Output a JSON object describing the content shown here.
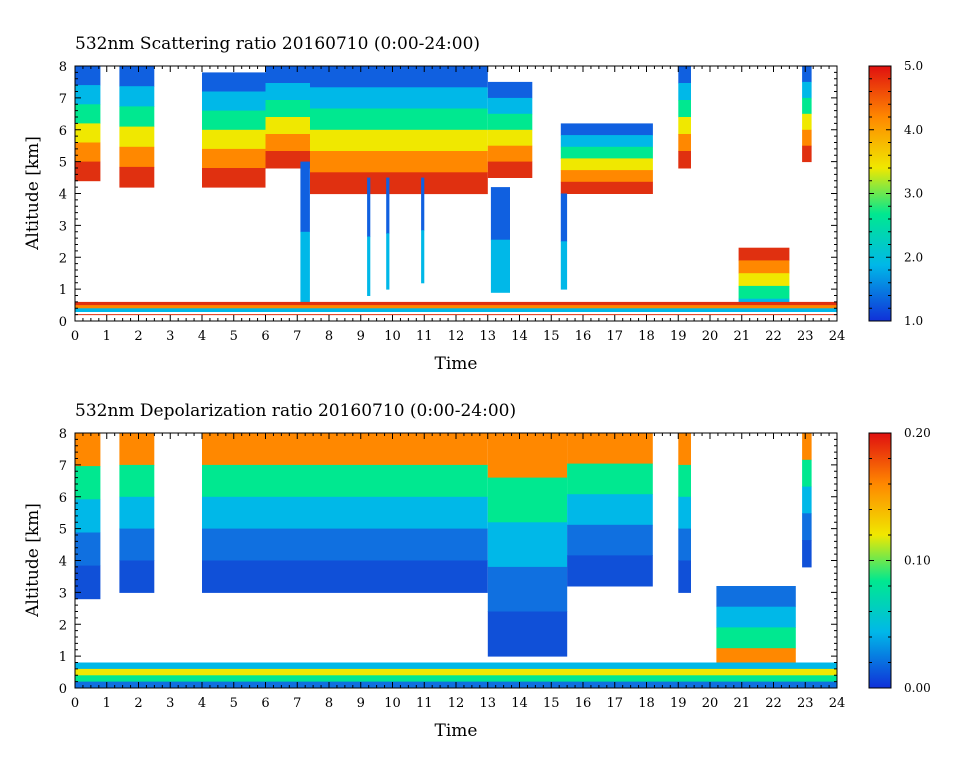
{
  "chart_data": [
    {
      "type": "heatmap",
      "title": "532nm Scattering ratio  20160710 (0:00-24:00)",
      "xlabel": "Time",
      "ylabel": "Altitude [km]",
      "xlim": [
        0,
        24
      ],
      "ylim": [
        0,
        8
      ],
      "x_ticks": [
        "0",
        "1",
        "2",
        "3",
        "4",
        "5",
        "6",
        "7",
        "8",
        "9",
        "10",
        "11",
        "12",
        "13",
        "14",
        "15",
        "16",
        "17",
        "18",
        "19",
        "20",
        "21",
        "22",
        "23",
        "24"
      ],
      "y_ticks": [
        "0",
        "1",
        "2",
        "3",
        "4",
        "5",
        "6",
        "7",
        "8"
      ],
      "colorbar": {
        "range": [
          1.0,
          5.0
        ],
        "ticks": [
          "1.0",
          "2.0",
          "3.0",
          "4.0",
          "5.0"
        ],
        "colors": [
          "#1030d8",
          "#00b8e8",
          "#00e890",
          "#f0e800",
          "#ff8800",
          "#e01010"
        ]
      },
      "reference_line_km": 0.2,
      "features": [
        {
          "t0": 0.0,
          "t1": 0.8,
          "base": 4.4,
          "top": 8.0,
          "kind": "cirrus"
        },
        {
          "t0": 1.4,
          "t1": 2.5,
          "base": 4.2,
          "top": 8.0,
          "kind": "cirrus"
        },
        {
          "t0": 4.0,
          "t1": 6.0,
          "base": 4.2,
          "top": 7.8,
          "kind": "cirrus"
        },
        {
          "t0": 6.0,
          "t1": 7.4,
          "base": 4.8,
          "top": 8.0,
          "kind": "cirrus"
        },
        {
          "t0": 7.4,
          "t1": 13.0,
          "base": 4.0,
          "top": 8.0,
          "kind": "cirrus"
        },
        {
          "t0": 13.0,
          "t1": 14.4,
          "base": 4.5,
          "top": 7.5,
          "kind": "cirrus"
        },
        {
          "t0": 15.3,
          "t1": 18.2,
          "base": 4.0,
          "top": 6.2,
          "kind": "cirrus"
        },
        {
          "t0": 19.0,
          "t1": 19.4,
          "base": 4.8,
          "top": 8.0,
          "kind": "cirrus"
        },
        {
          "t0": 22.9,
          "t1": 23.2,
          "base": 5.0,
          "top": 8.0,
          "kind": "cirrus"
        },
        {
          "t0": 7.1,
          "t1": 7.4,
          "base": 0.6,
          "top": 5.0,
          "kind": "column"
        },
        {
          "t0": 9.2,
          "t1": 9.3,
          "base": 0.8,
          "top": 4.5,
          "kind": "column"
        },
        {
          "t0": 9.8,
          "t1": 9.9,
          "base": 1.0,
          "top": 4.5,
          "kind": "column"
        },
        {
          "t0": 10.9,
          "t1": 11.0,
          "base": 1.2,
          "top": 4.5,
          "kind": "column"
        },
        {
          "t0": 13.1,
          "t1": 13.7,
          "base": 0.9,
          "top": 4.2,
          "kind": "column"
        },
        {
          "t0": 15.3,
          "t1": 15.5,
          "base": 1.0,
          "top": 4.0,
          "kind": "column"
        },
        {
          "t0": 20.9,
          "t1": 22.5,
          "base": 0.3,
          "top": 2.3,
          "kind": "low-cloud"
        },
        {
          "t0": 0.0,
          "t1": 24.0,
          "base": 0.3,
          "top": 0.6,
          "kind": "boundary-layer"
        }
      ]
    },
    {
      "type": "heatmap",
      "title": "532nm Depolarization ratio  20160710 (0:00-24:00)",
      "xlabel": "Time",
      "ylabel": "Altitude [km]",
      "xlim": [
        0,
        24
      ],
      "ylim": [
        0,
        8
      ],
      "x_ticks": [
        "0",
        "1",
        "2",
        "3",
        "4",
        "5",
        "6",
        "7",
        "8",
        "9",
        "10",
        "11",
        "12",
        "13",
        "14",
        "15",
        "16",
        "17",
        "18",
        "19",
        "20",
        "21",
        "22",
        "23",
        "24"
      ],
      "y_ticks": [
        "0",
        "1",
        "2",
        "3",
        "4",
        "5",
        "6",
        "7",
        "8"
      ],
      "colorbar": {
        "range": [
          0.0,
          0.2
        ],
        "ticks": [
          "0.00",
          "0.10",
          "0.20"
        ],
        "colors": [
          "#1030d8",
          "#00b8e8",
          "#00e890",
          "#f0e800",
          "#ff8800",
          "#e01010"
        ]
      },
      "features": [
        {
          "t0": 0.0,
          "t1": 0.8,
          "base": 2.8,
          "top": 8.0,
          "kind": "cirrus"
        },
        {
          "t0": 1.4,
          "t1": 2.5,
          "base": 3.0,
          "top": 8.0,
          "kind": "cirrus"
        },
        {
          "t0": 4.0,
          "t1": 6.0,
          "base": 3.0,
          "top": 8.0,
          "kind": "cirrus"
        },
        {
          "t0": 6.0,
          "t1": 13.0,
          "base": 3.0,
          "top": 8.0,
          "kind": "cirrus"
        },
        {
          "t0": 13.0,
          "t1": 15.5,
          "base": 1.0,
          "top": 8.0,
          "kind": "cirrus"
        },
        {
          "t0": 15.5,
          "t1": 18.2,
          "base": 3.2,
          "top": 8.0,
          "kind": "cirrus"
        },
        {
          "t0": 19.0,
          "t1": 19.4,
          "base": 3.0,
          "top": 8.0,
          "kind": "cirrus"
        },
        {
          "t0": 22.9,
          "t1": 23.2,
          "base": 3.8,
          "top": 8.0,
          "kind": "cirrus"
        },
        {
          "t0": 20.2,
          "t1": 22.7,
          "base": 0.6,
          "top": 3.2,
          "kind": "low-cloud"
        },
        {
          "t0": 0.0,
          "t1": 24.0,
          "base": 0.0,
          "top": 0.8,
          "kind": "boundary-layer"
        }
      ]
    }
  ]
}
